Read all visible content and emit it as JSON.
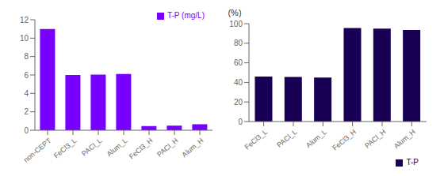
{
  "chart_data": [
    {
      "type": "bar",
      "categories": [
        "non-CEPT",
        "FeCl3_L",
        "PACl_L",
        "Alum_L",
        "FeCl3_H",
        "PACl_H",
        "Alum_H"
      ],
      "series": [
        {
          "name": "T-P (mg/L)",
          "color": "#7700FF",
          "values": [
            11.0,
            6.0,
            6.05,
            6.1,
            0.45,
            0.5,
            0.65
          ]
        }
      ],
      "ylim": [
        0,
        12
      ],
      "yticks": [
        0,
        2,
        4,
        6,
        8,
        10,
        12
      ],
      "legend": "upper right",
      "grid": false
    },
    {
      "type": "bar",
      "ylabel": "(%)",
      "categories": [
        "FeCl3_L",
        "PACl_L",
        "Alum_L",
        "FeCl3_H",
        "PACl_H",
        "Alum_H"
      ],
      "series": [
        {
          "name": "T-P",
          "color": "#1a0055",
          "values": [
            46.0,
            45.5,
            45.0,
            95.5,
            95.0,
            93.5
          ]
        }
      ],
      "ylim": [
        0,
        100
      ],
      "yticks": [
        0,
        20,
        40,
        60,
        80,
        100
      ],
      "legend": "lower right",
      "grid": false
    }
  ]
}
